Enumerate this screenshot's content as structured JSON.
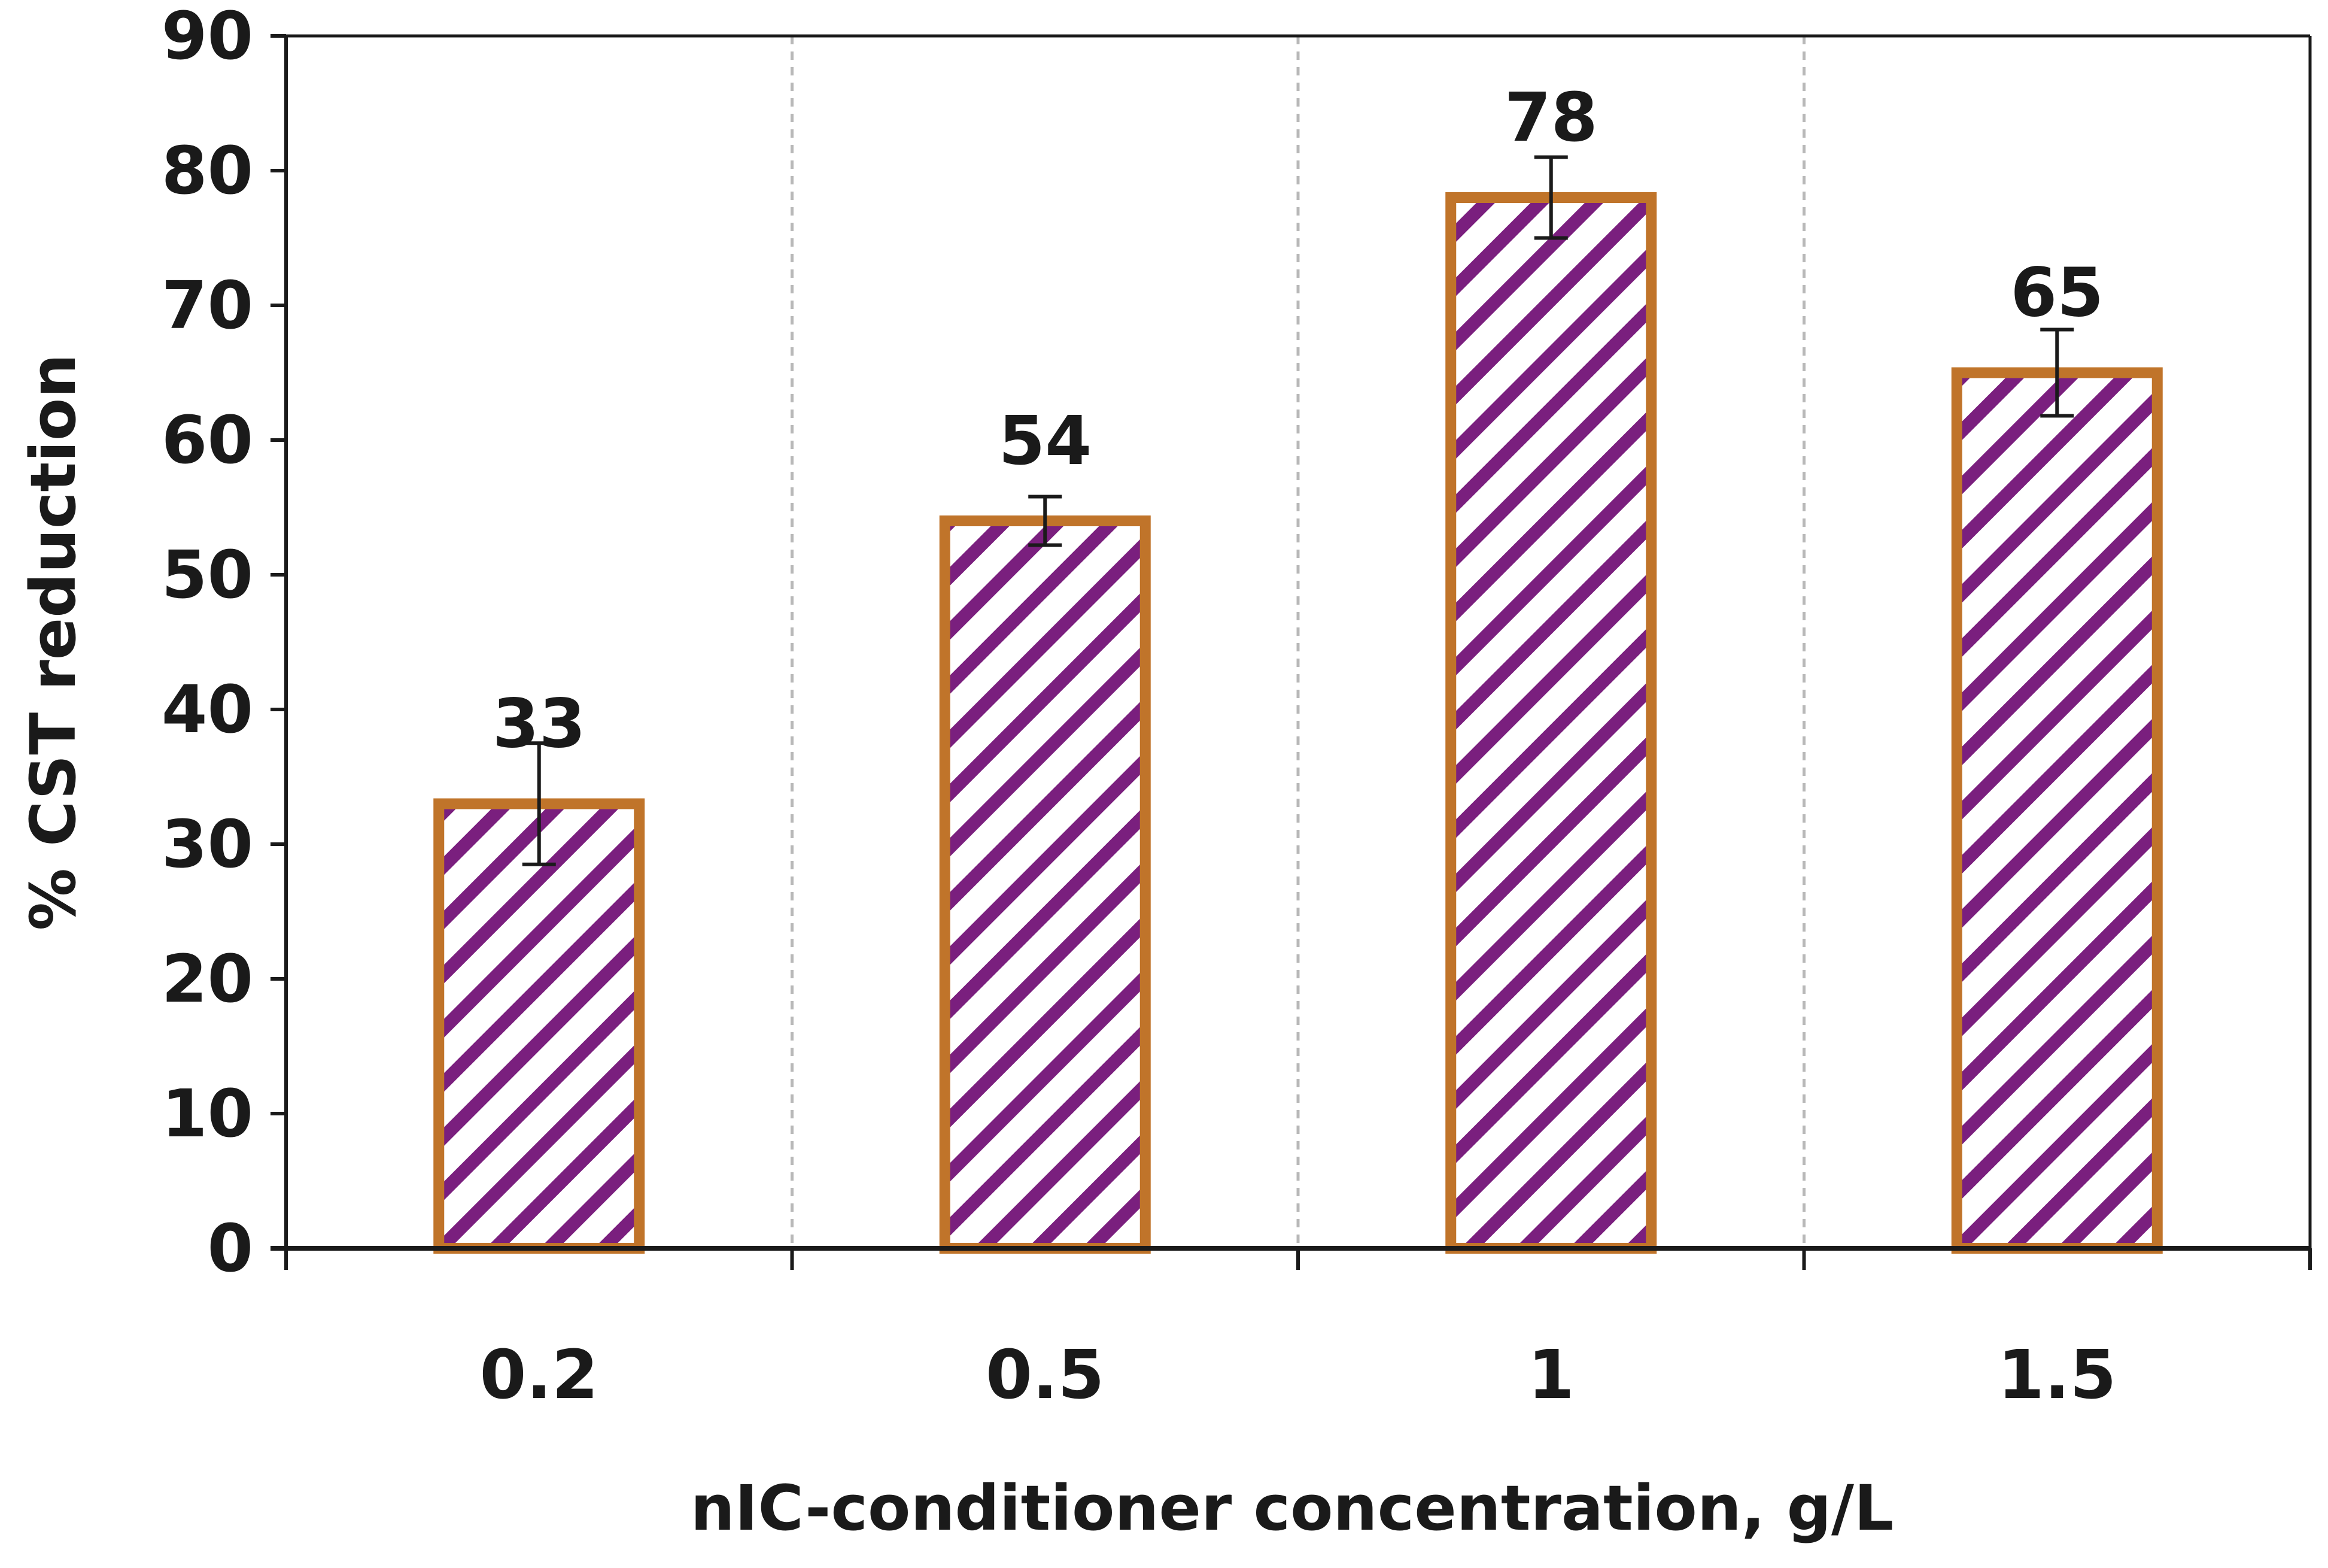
{
  "chart_data": {
    "type": "bar",
    "title": "",
    "xlabel": "nIC-conditioner concentration, g/L",
    "ylabel": "% CST reduction",
    "categories": [
      "0.2",
      "0.5",
      "1",
      "1.5"
    ],
    "values": [
      33,
      54,
      78,
      65
    ],
    "errors": [
      4.5,
      1.8,
      3.0,
      3.2
    ],
    "data_labels": [
      "33",
      "54",
      "78",
      "65"
    ],
    "ylim": [
      0,
      90
    ],
    "yticks": [
      0,
      10,
      20,
      30,
      40,
      50,
      60,
      70,
      80,
      90
    ],
    "ytick_labels": [
      "0",
      "10",
      "20",
      "30",
      "40",
      "50",
      "60",
      "70",
      "80",
      "90"
    ],
    "grid": "vertical dashed separators between categories",
    "legend": "none",
    "colors": {
      "bar_edge": "#c0742a",
      "hatch": "#7a1f7e",
      "bar_fill": "#ffffff",
      "axis": "#1a1a1a",
      "grid": "#b8b8b8",
      "error_bar": "#1a1a1a"
    }
  }
}
